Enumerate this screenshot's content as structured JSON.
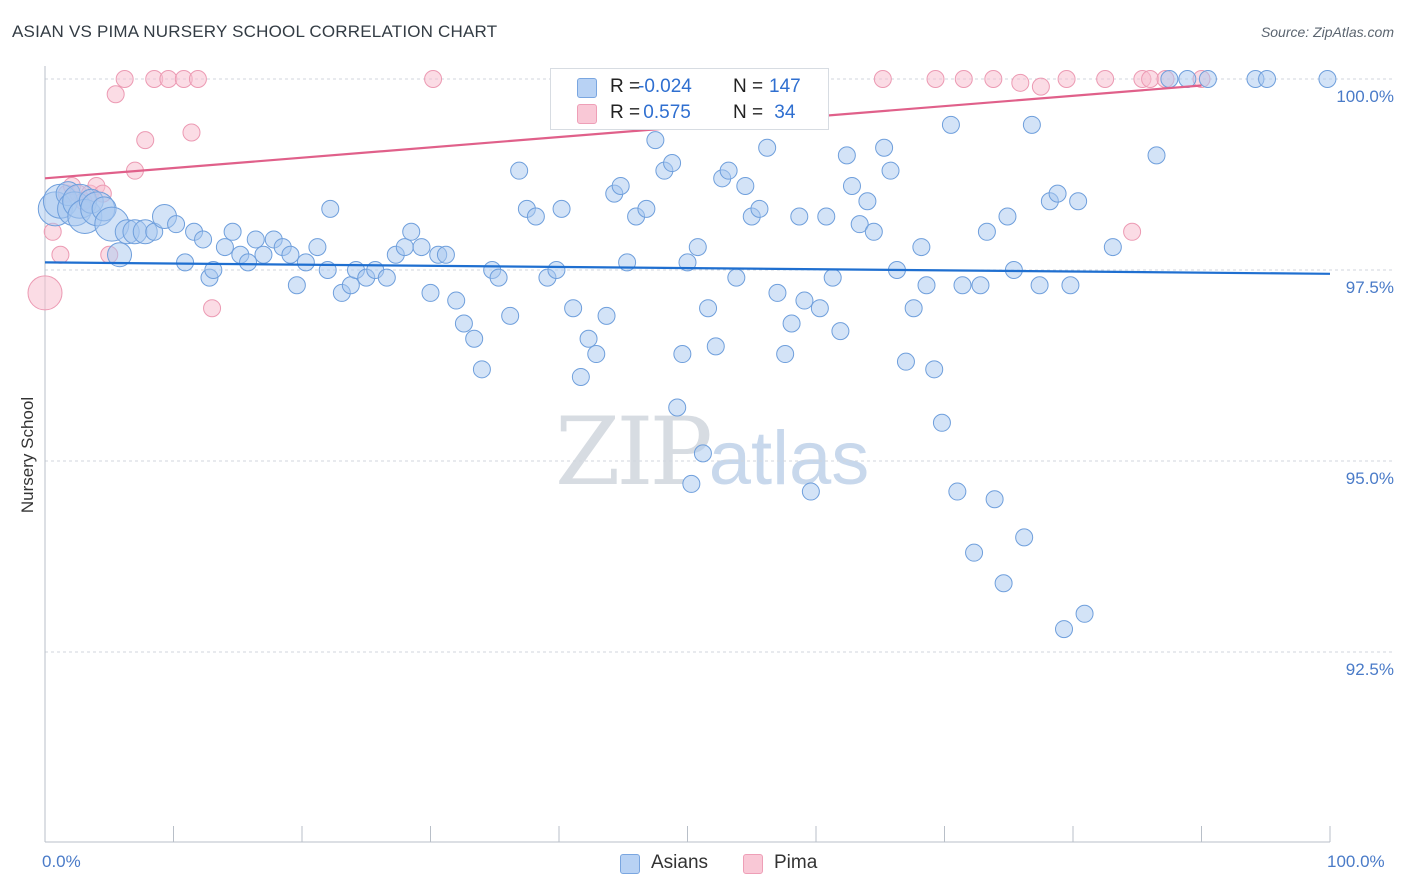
{
  "title": "ASIAN VS PIMA NURSERY SCHOOL CORRELATION CHART",
  "source": "Source: ZipAtlas.com",
  "watermark": {
    "zip": "ZIP",
    "atlas": "atlas"
  },
  "colors": {
    "asians_fill": "#a8c8f0",
    "asians_stroke": "#6f9fdc",
    "asians_line": "#1f6fd0",
    "pima_fill": "#f7bfcf",
    "pima_stroke": "#ec9ab3",
    "pima_line": "#e0608a",
    "tick_text": "#4a7bc8",
    "grid": "#d0d6de"
  },
  "legend": {
    "rows": [
      {
        "r_label": "R =",
        "r_value": "-0.024",
        "n_label": "N =",
        "n_value": "147"
      },
      {
        "r_label": "R =",
        "r_value": " 0.575",
        "n_label": "N =",
        "n_value": " 34"
      }
    ],
    "series_names": [
      "Asians",
      "Pima"
    ]
  },
  "chart_data": {
    "type": "scatter",
    "title": "ASIAN VS PIMA NURSERY SCHOOL CORRELATION CHART",
    "xlabel": "",
    "ylabel": "Nursery School",
    "xlim": [
      0,
      100
    ],
    "ylim": [
      90.3,
      100.2
    ],
    "x_tick_labels": [
      "0.0%",
      "100.0%"
    ],
    "y_ticks": [
      {
        "value": 100.0,
        "label": "100.0%"
      },
      {
        "value": 97.5,
        "label": "97.5%"
      },
      {
        "value": 95.0,
        "label": "95.0%"
      },
      {
        "value": 92.5,
        "label": "92.5%"
      }
    ],
    "series": [
      {
        "name": "Asians",
        "r": -0.024,
        "n": 147,
        "trend": {
          "x": [
            0,
            100
          ],
          "y": [
            97.6,
            97.45
          ]
        },
        "points": [
          [
            0.8,
            98.3
          ],
          [
            1.2,
            98.4
          ],
          [
            1.8,
            98.5
          ],
          [
            2.3,
            98.3
          ],
          [
            2.7,
            98.4
          ],
          [
            3.1,
            98.2
          ],
          [
            3.6,
            98.4
          ],
          [
            4.1,
            98.3
          ],
          [
            4.6,
            98.3
          ],
          [
            5.2,
            98.1
          ],
          [
            5.8,
            97.7
          ],
          [
            6.4,
            98.0
          ],
          [
            7.0,
            98.0
          ],
          [
            7.8,
            98.0
          ],
          [
            8.5,
            98.0
          ],
          [
            9.3,
            98.2
          ],
          [
            10.2,
            98.1
          ],
          [
            10.9,
            97.6
          ],
          [
            11.6,
            98.0
          ],
          [
            12.3,
            97.9
          ],
          [
            12.8,
            97.4
          ],
          [
            13.1,
            97.5
          ],
          [
            14.0,
            97.8
          ],
          [
            14.6,
            98.0
          ],
          [
            15.2,
            97.7
          ],
          [
            15.8,
            97.6
          ],
          [
            16.4,
            97.9
          ],
          [
            17.0,
            97.7
          ],
          [
            17.8,
            97.9
          ],
          [
            18.5,
            97.8
          ],
          [
            19.1,
            97.7
          ],
          [
            19.6,
            97.3
          ],
          [
            20.3,
            97.6
          ],
          [
            21.2,
            97.8
          ],
          [
            22.2,
            98.3
          ],
          [
            22.0,
            97.5
          ],
          [
            23.1,
            97.2
          ],
          [
            23.8,
            97.3
          ],
          [
            24.2,
            97.5
          ],
          [
            25.0,
            97.4
          ],
          [
            25.7,
            97.5
          ],
          [
            26.6,
            97.4
          ],
          [
            27.3,
            97.7
          ],
          [
            28.0,
            97.8
          ],
          [
            28.5,
            98.0
          ],
          [
            29.3,
            97.8
          ],
          [
            30.0,
            97.2
          ],
          [
            30.6,
            97.7
          ],
          [
            31.2,
            97.7
          ],
          [
            32.0,
            97.1
          ],
          [
            32.6,
            96.8
          ],
          [
            33.4,
            96.6
          ],
          [
            34.0,
            96.2
          ],
          [
            34.8,
            97.5
          ],
          [
            35.3,
            97.4
          ],
          [
            36.2,
            96.9
          ],
          [
            36.9,
            98.8
          ],
          [
            37.5,
            98.3
          ],
          [
            38.2,
            98.2
          ],
          [
            39.1,
            97.4
          ],
          [
            39.8,
            97.5
          ],
          [
            40.2,
            98.3
          ],
          [
            41.1,
            97.0
          ],
          [
            41.7,
            96.1
          ],
          [
            42.3,
            96.6
          ],
          [
            42.9,
            96.4
          ],
          [
            43.7,
            96.9
          ],
          [
            44.3,
            98.5
          ],
          [
            44.8,
            98.6
          ],
          [
            45.3,
            97.6
          ],
          [
            46.0,
            98.2
          ],
          [
            46.8,
            98.3
          ],
          [
            47.5,
            99.2
          ],
          [
            48.2,
            98.8
          ],
          [
            48.8,
            98.9
          ],
          [
            49.2,
            95.7
          ],
          [
            49.6,
            96.4
          ],
          [
            50.0,
            97.6
          ],
          [
            50.3,
            94.7
          ],
          [
            50.8,
            97.8
          ],
          [
            51.2,
            95.1
          ],
          [
            51.6,
            97.0
          ],
          [
            52.2,
            96.5
          ],
          [
            52.7,
            98.7
          ],
          [
            53.2,
            98.8
          ],
          [
            53.8,
            97.4
          ],
          [
            54.5,
            98.6
          ],
          [
            55.0,
            98.2
          ],
          [
            55.6,
            98.3
          ],
          [
            56.2,
            99.1
          ],
          [
            57.0,
            97.2
          ],
          [
            57.6,
            96.4
          ],
          [
            58.1,
            96.8
          ],
          [
            58.7,
            98.2
          ],
          [
            59.1,
            97.1
          ],
          [
            59.6,
            94.6
          ],
          [
            60.3,
            97.0
          ],
          [
            60.8,
            98.2
          ],
          [
            61.3,
            97.4
          ],
          [
            61.9,
            96.7
          ],
          [
            62.4,
            99.0
          ],
          [
            62.8,
            98.6
          ],
          [
            63.4,
            98.1
          ],
          [
            64.0,
            98.4
          ],
          [
            64.5,
            98.0
          ],
          [
            65.3,
            99.1
          ],
          [
            65.8,
            98.8
          ],
          [
            66.3,
            97.5
          ],
          [
            67.0,
            96.3
          ],
          [
            67.6,
            97.0
          ],
          [
            68.2,
            97.8
          ],
          [
            68.6,
            97.3
          ],
          [
            69.2,
            96.2
          ],
          [
            69.8,
            95.5
          ],
          [
            70.5,
            99.4
          ],
          [
            71.0,
            94.6
          ],
          [
            71.4,
            97.3
          ],
          [
            72.3,
            93.8
          ],
          [
            72.8,
            97.3
          ],
          [
            73.3,
            98.0
          ],
          [
            73.9,
            94.5
          ],
          [
            74.6,
            93.4
          ],
          [
            74.9,
            98.2
          ],
          [
            75.4,
            97.5
          ],
          [
            76.2,
            94.0
          ],
          [
            76.8,
            99.4
          ],
          [
            77.4,
            97.3
          ],
          [
            78.2,
            98.4
          ],
          [
            78.8,
            98.5
          ],
          [
            79.3,
            92.8
          ],
          [
            79.8,
            97.3
          ],
          [
            80.4,
            98.4
          ],
          [
            80.9,
            93.0
          ],
          [
            83.1,
            97.8
          ],
          [
            86.5,
            99.0
          ],
          [
            87.5,
            100.0
          ],
          [
            88.9,
            100.0
          ],
          [
            90.5,
            100.0
          ],
          [
            94.2,
            100.0
          ],
          [
            95.1,
            100.0
          ],
          [
            99.8,
            100.0
          ]
        ],
        "sizes": [
          3,
          3,
          2,
          3,
          3,
          3,
          2,
          3,
          2,
          3,
          2,
          2,
          2,
          2,
          1,
          2,
          1,
          1,
          1,
          1,
          1,
          1,
          1,
          1,
          1,
          1,
          1,
          1,
          1,
          1,
          1,
          1,
          1,
          1,
          1,
          1,
          1,
          1,
          1,
          1,
          1,
          1,
          1,
          1,
          1,
          1,
          1,
          1,
          1,
          1,
          1,
          1,
          1,
          1,
          1,
          1,
          1,
          1,
          1,
          1,
          1,
          1,
          1,
          1,
          1,
          1,
          1,
          1,
          1,
          1,
          1,
          1,
          1,
          1,
          1,
          1,
          1,
          1,
          1,
          1,
          1,
          1,
          1,
          1,
          1,
          1,
          1,
          1,
          1,
          1,
          1,
          1,
          1,
          1,
          1,
          1,
          1,
          1,
          1,
          1,
          1,
          1,
          1,
          1,
          1,
          1,
          1,
          1,
          1,
          1,
          1,
          1,
          1,
          1,
          1,
          1,
          1,
          1,
          1,
          1,
          1,
          1,
          1,
          1,
          1,
          1,
          1,
          1,
          1,
          1,
          1,
          1,
          1,
          1,
          1,
          1,
          1,
          1,
          1,
          1,
          1,
          1,
          1,
          1,
          1,
          1,
          1
        ]
      },
      {
        "name": "Pima",
        "r": 0.575,
        "n": 34,
        "trend": {
          "x": [
            0,
            100
          ],
          "y": [
            98.7,
            100.05
          ]
        },
        "points": [
          [
            0.0,
            97.2
          ],
          [
            0.6,
            98.0
          ],
          [
            1.2,
            97.7
          ],
          [
            1.7,
            98.5
          ],
          [
            2.1,
            98.6
          ],
          [
            2.6,
            98.5
          ],
          [
            3.0,
            98.4
          ],
          [
            3.5,
            98.5
          ],
          [
            4.0,
            98.6
          ],
          [
            4.5,
            98.5
          ],
          [
            5.0,
            97.7
          ],
          [
            5.5,
            99.8
          ],
          [
            6.2,
            100.0
          ],
          [
            7.0,
            98.8
          ],
          [
            7.8,
            99.2
          ],
          [
            8.5,
            100.0
          ],
          [
            9.6,
            100.0
          ],
          [
            10.8,
            100.0
          ],
          [
            11.4,
            99.3
          ],
          [
            11.9,
            100.0
          ],
          [
            13.0,
            97.0
          ],
          [
            30.2,
            100.0
          ],
          [
            65.2,
            100.0
          ],
          [
            69.3,
            100.0
          ],
          [
            71.5,
            100.0
          ],
          [
            73.8,
            100.0
          ],
          [
            75.9,
            99.95
          ],
          [
            77.5,
            99.9
          ],
          [
            79.5,
            100.0
          ],
          [
            82.5,
            100.0
          ],
          [
            84.6,
            98.0
          ],
          [
            85.4,
            100.0
          ],
          [
            86.0,
            100.0
          ],
          [
            87.2,
            100.0
          ],
          [
            90.0,
            100.0
          ]
        ],
        "sizes": [
          3,
          1,
          1,
          1,
          1,
          1,
          1,
          1,
          1,
          1,
          1,
          1,
          1,
          1,
          1,
          1,
          1,
          1,
          1,
          1,
          1,
          1,
          1,
          1,
          1,
          1,
          1,
          1,
          1,
          1,
          1,
          1,
          1,
          1,
          1
        ]
      }
    ]
  }
}
